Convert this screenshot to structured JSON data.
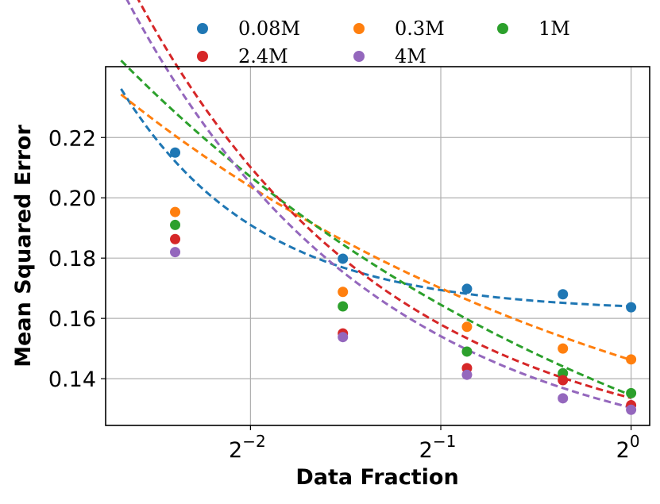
{
  "chart_data": {
    "type": "scatter",
    "title": "",
    "xlabel": "Data Fraction",
    "ylabel": "Mean Squared Error",
    "xscale": "log2",
    "xlim": [
      0.1475,
      1.07
    ],
    "ylim": [
      0.1245,
      0.2435
    ],
    "grid": true,
    "legend": "top-center, outside, 3 columns",
    "x_ticks": [
      {
        "value": 0.25,
        "base": "2",
        "exp": "−2"
      },
      {
        "value": 0.5,
        "base": "2",
        "exp": "−1"
      },
      {
        "value": 1.0,
        "base": "2",
        "exp": "0"
      }
    ],
    "y_ticks": [
      0.14,
      0.16,
      0.18,
      0.2,
      0.22
    ],
    "fit_x_start": 0.156,
    "x": [
      0.19,
      0.35,
      0.55,
      0.78,
      1.0
    ],
    "series": [
      {
        "name": "0.08M",
        "color": "#1f77b4",
        "values": [
          0.215,
          0.1798,
          0.1698,
          0.168,
          0.1637
        ],
        "fit": {
          "a": 0.0018,
          "b": 0.1622,
          "p": 2.0
        }
      },
      {
        "name": "0.3M",
        "color": "#ff7f0e",
        "values": [
          0.1953,
          0.1688,
          0.1572,
          0.15,
          0.1464
        ],
        "fit": {
          "a": 0.0575,
          "b": 0.0887,
          "p": 0.5
        }
      },
      {
        "name": "1M",
        "color": "#2ca02c",
        "values": [
          0.191,
          0.164,
          0.149,
          0.1418,
          0.1352
        ],
        "fit": {
          "a": 0.0725,
          "b": 0.062,
          "p": 0.5
        }
      },
      {
        "name": "2.4M",
        "color": "#d62728",
        "values": [
          0.1863,
          0.155,
          0.1435,
          0.1395,
          0.1312
        ],
        "fit": {
          "a": 0.0213,
          "b": 0.1123,
          "p": 1.1
        }
      },
      {
        "name": "4M",
        "color": "#9467bd",
        "values": [
          0.182,
          0.1538,
          0.1413,
          0.1335,
          0.1297
        ],
        "fit": {
          "a": 0.0207,
          "b": 0.1097,
          "p": 1.1
        }
      }
    ]
  }
}
